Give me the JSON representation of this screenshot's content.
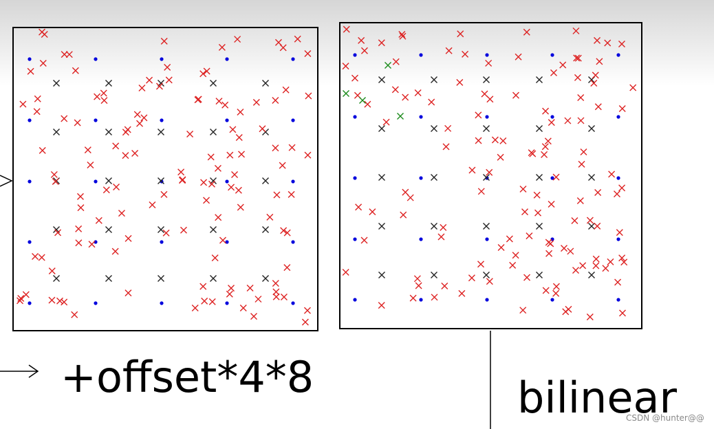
{
  "captions": {
    "offset": "+offset*4*8",
    "bilinear": "bilinear"
  },
  "watermark": "CSDN @hunter@@"
}
